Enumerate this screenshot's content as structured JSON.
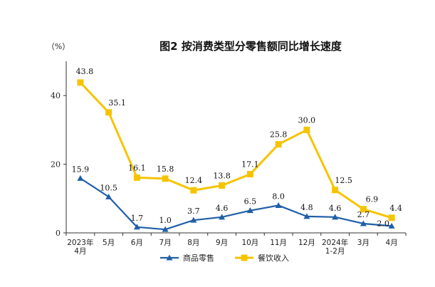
{
  "chart_data": {
    "type": "line",
    "title": "图2  按消费类型分零售额同比增长速度",
    "unit_label": "（%）",
    "categories": [
      [
        "2023年",
        "4月"
      ],
      [
        "5月"
      ],
      [
        "6月"
      ],
      [
        "7月"
      ],
      [
        "8月"
      ],
      [
        "9月"
      ],
      [
        "10月"
      ],
      [
        "11月"
      ],
      [
        "12月"
      ],
      [
        "2024年",
        "1-2月"
      ],
      [
        "3月"
      ],
      [
        "4月"
      ]
    ],
    "yticks": [
      0,
      20,
      40
    ],
    "ylim": [
      0,
      50
    ],
    "grid": false,
    "legend_position": "bottom",
    "series": [
      {
        "name": "商品零售",
        "color": "#1f5fa8",
        "marker": "triangle",
        "values": [
          15.9,
          10.5,
          1.7,
          1.0,
          3.7,
          4.6,
          6.5,
          8.0,
          4.8,
          4.6,
          2.7,
          2.0
        ],
        "labels": [
          "15.9",
          "10.5",
          "1.7",
          "1.0",
          "3.7",
          "4.6",
          "6.5",
          "8.0",
          "4.8",
          "4.6",
          "2.7",
          "2.0"
        ]
      },
      {
        "name": "餐饮收入",
        "color": "#f5c400",
        "marker": "square",
        "values": [
          43.8,
          35.1,
          16.1,
          15.8,
          12.4,
          13.8,
          17.1,
          25.8,
          30.0,
          12.5,
          6.9,
          4.4
        ],
        "labels": [
          "43.8",
          "35.1",
          "16.1",
          "15.8",
          "12.4",
          "13.8",
          "17.1",
          "25.8",
          "30.0",
          "12.5",
          "6.9",
          "4.4"
        ]
      }
    ]
  }
}
